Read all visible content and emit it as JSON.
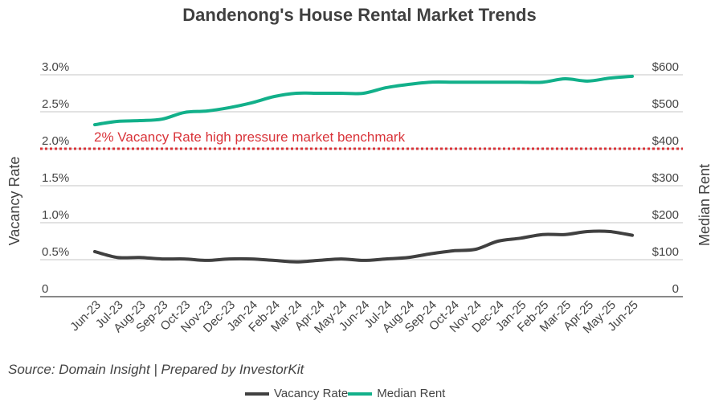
{
  "chart_data": {
    "type": "line",
    "title": "Dandenong's House Rental Market Trends",
    "source": "Source: Domain Insight | Prepared by InvestorKit",
    "categories": [
      "Jun-23",
      "Jul-23",
      "Aug-23",
      "Sep-23",
      "Oct-23",
      "Nov-23",
      "Dec-23",
      "Jan-24",
      "Feb-24",
      "Mar-24",
      "Apr-24",
      "May-24",
      "Jun-24",
      "Jul-24",
      "Aug-24",
      "Sep-24",
      "Oct-24",
      "Nov-24",
      "Dec-24",
      "Jan-25",
      "Feb-25",
      "Mar-25",
      "Apr-25",
      "May-25",
      "Jun-25"
    ],
    "left_axis": {
      "label": "Vacancy Rate",
      "range": [
        0,
        3.0
      ],
      "ticks": [
        "0",
        "0.5%",
        "1.0%",
        "1.5%",
        "2.0%",
        "2.5%",
        "3.0%"
      ]
    },
    "right_axis": {
      "label": "Median Rent",
      "range": [
        0,
        600
      ],
      "ticks": [
        "0",
        "$100",
        "$200",
        "$300",
        "$400",
        "$500",
        "$600"
      ]
    },
    "series": [
      {
        "name": "Vacancy Rate",
        "axis": "left",
        "color": "#404040",
        "values": [
          0.61,
          0.53,
          0.53,
          0.51,
          0.51,
          0.49,
          0.51,
          0.51,
          0.49,
          0.47,
          0.49,
          0.51,
          0.49,
          0.51,
          0.53,
          0.58,
          0.62,
          0.64,
          0.75,
          0.79,
          0.84,
          0.84,
          0.88,
          0.88,
          0.83
        ]
      },
      {
        "name": "Median Rent",
        "axis": "right",
        "color": "#12b08a",
        "values": [
          465,
          474,
          476,
          480,
          498,
          502,
          511,
          524,
          541,
          550,
          550,
          550,
          550,
          565,
          574,
          580,
          580,
          580,
          580,
          580,
          580,
          589,
          583,
          591,
          596
        ]
      }
    ],
    "benchmark": {
      "value": 2.0,
      "label": "2% Vacancy Rate high pressure market benchmark",
      "color": "#d9343a"
    },
    "grid": true,
    "legend": "bottom"
  }
}
